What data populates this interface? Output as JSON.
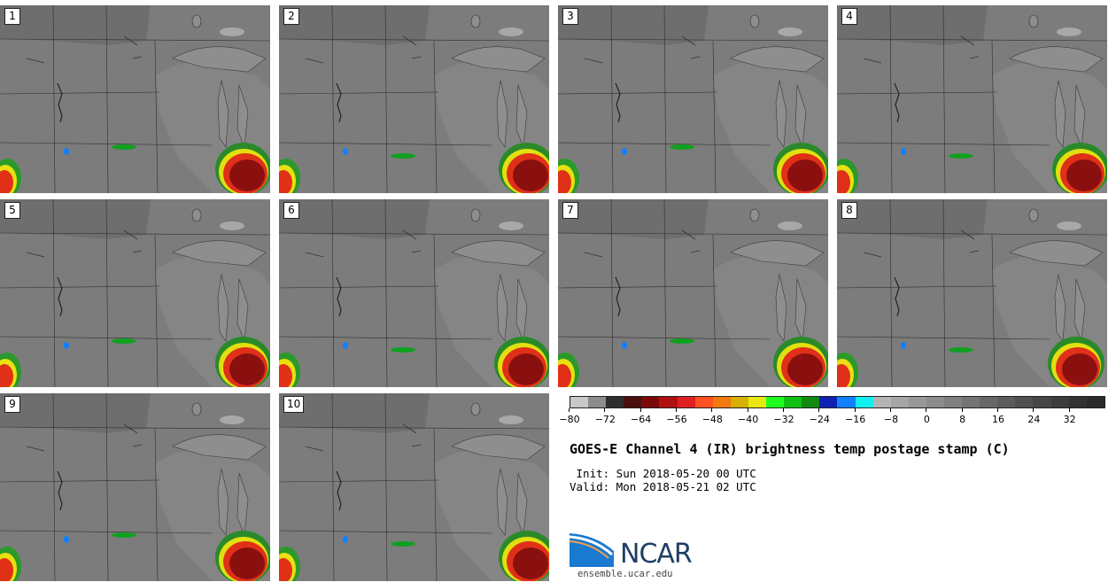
{
  "panels": [
    {
      "label": "1"
    },
    {
      "label": "2"
    },
    {
      "label": "3"
    },
    {
      "label": "4"
    },
    {
      "label": "5"
    },
    {
      "label": "6"
    },
    {
      "label": "7"
    },
    {
      "label": "8"
    },
    {
      "label": "9"
    },
    {
      "label": "10"
    }
  ],
  "colorbar": {
    "colors": [
      "#c8c8c8",
      "#8c8c8c",
      "#2f2f2f",
      "#4a1010",
      "#7a0a0a",
      "#b01010",
      "#e02020",
      "#ff5020",
      "#f07a10",
      "#d8b000",
      "#e8e810",
      "#20ff20",
      "#10c010",
      "#108a10",
      "#1020b0",
      "#1080ff",
      "#10f0f0",
      "#b4b4b4",
      "#a6a6a6",
      "#989898",
      "#8c8c8c",
      "#808080",
      "#747474",
      "#686868",
      "#5c5c5c",
      "#505050",
      "#464646",
      "#3c3c3c",
      "#323232",
      "#2a2a2a"
    ],
    "range": [
      -80,
      40
    ],
    "ticks": [
      "−80",
      "−72",
      "−64",
      "−56",
      "−48",
      "−40",
      "−32",
      "−24",
      "−16",
      "−8",
      "0",
      "8",
      "16",
      "24",
      "32"
    ],
    "tick_values": [
      -80,
      -72,
      -64,
      -56,
      -48,
      -40,
      -32,
      -24,
      -16,
      -8,
      0,
      8,
      16,
      24,
      32
    ]
  },
  "title": "GOES-E Channel 4 (IR) brightness temp postage stamp (C)",
  "init": " Init: Sun 2018-05-20 00 UTC",
  "valid": "Valid: Mon 2018-05-21 02 UTC",
  "logo": {
    "text": "NCAR"
  },
  "url": "ensemble.ucar.edu"
}
